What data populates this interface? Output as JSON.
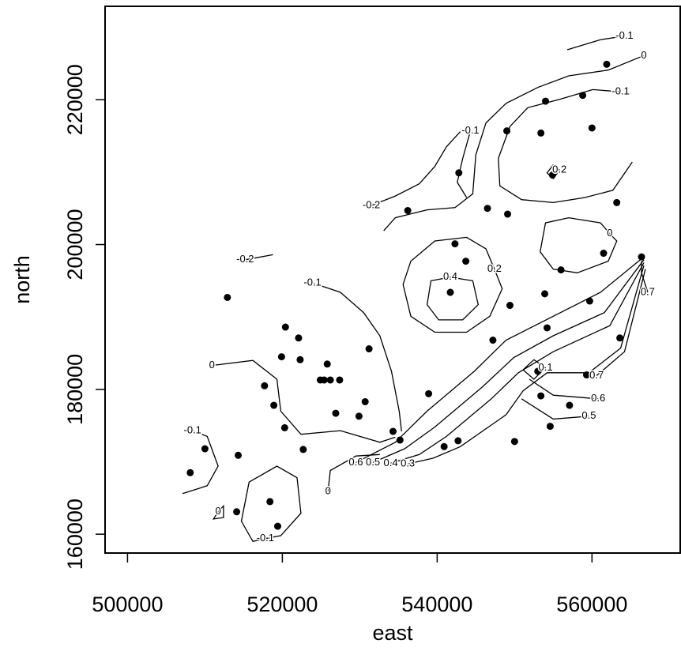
{
  "chart_data": {
    "type": "contour",
    "x_label": "east",
    "y_label": "north",
    "xlim": [
      497100,
      571500
    ],
    "ylim": [
      157400,
      232900
    ],
    "xticks": [
      500000,
      520000,
      540000,
      560000
    ],
    "yticks": [
      160000,
      180000,
      200000,
      220000
    ],
    "color": "#000000",
    "points": {
      "x": [
        561900,
        554000,
        558800,
        560000,
        549000,
        553400,
        542800,
        554900,
        546500,
        549100,
        536200,
        563200,
        542300,
        543700,
        561500,
        566400,
        541700,
        556000,
        553900,
        549400,
        559700,
        512900,
        520400,
        522100,
        519900,
        522300,
        525800,
        525400,
        524900,
        526200,
        527400,
        531200,
        547200,
        554200,
        563600,
        553000,
        559300,
        517700,
        518900,
        530700,
        526900,
        529900,
        538900,
        553400,
        557100,
        554600,
        520300,
        534300,
        522700,
        535200,
        540900,
        542700,
        550000,
        510000,
        514300,
        508100,
        518400,
        514100,
        519400
      ],
      "y": [
        224900,
        219800,
        220600,
        216100,
        215700,
        215400,
        209900,
        209600,
        205000,
        204200,
        204700,
        205800,
        200100,
        197700,
        198800,
        198300,
        193400,
        196500,
        193200,
        191600,
        192200,
        192700,
        188600,
        187100,
        184500,
        184100,
        183500,
        181300,
        181300,
        181300,
        181300,
        185600,
        186800,
        188500,
        187100,
        182500,
        182000,
        180500,
        177800,
        178300,
        176700,
        176300,
        179400,
        179100,
        177800,
        174900,
        174700,
        174200,
        171700,
        173000,
        172100,
        172900,
        172800,
        171800,
        170900,
        168500,
        164500,
        163100,
        161100
      ]
    },
    "contours": [
      {
        "level": -0.1,
        "x": [
          564200,
          561100,
          556800
        ],
        "y": [
          228800,
          228300,
          226900
        ]
      },
      {
        "level": 0,
        "x": [
          566700,
          562100,
          557000,
          553000,
          548900,
          546300,
          545000,
          544600,
          542300,
          538700,
          534600,
          533100
        ],
        "y": [
          226100,
          224100,
          223300,
          221700,
          219500,
          216800,
          212400,
          207000,
          205100,
          204800,
          203700,
          201900
        ]
      },
      {
        "level": -0.1,
        "x": [
          563700,
          560100,
          556000,
          551700,
          549400,
          547900,
          548100,
          550900,
          555000,
          559100,
          562700,
          565200
        ],
        "y": [
          221100,
          221400,
          220100,
          218900,
          216300,
          211900,
          208100,
          206200,
          205800,
          206500,
          207500,
          211400
        ]
      },
      {
        "level": -0.2,
        "x": [
          531500,
          534600,
          537700,
          539700,
          541200,
          543000
        ],
        "y": [
          205400,
          206700,
          208400,
          210800,
          213500,
          215600
        ]
      },
      {
        "level": -0.1,
        "x": [
          544300,
          543300,
          542600,
          543800
        ],
        "y": [
          215700,
          211900,
          208600,
          206500
        ]
      },
      {
        "level": 0,
        "x": [
          562300,
          561100,
          557000,
          554000,
          553300,
          555000,
          558100,
          562100,
          563200,
          562300
        ],
        "y": [
          201500,
          203000,
          203700,
          203000,
          199000,
          196600,
          196100,
          197700,
          200500,
          201500
        ]
      },
      {
        "level": 0.4,
        "x": [
          541700,
          544600,
          545300,
          543300,
          540200,
          538700,
          539200,
          541700
        ],
        "y": [
          195500,
          195000,
          191700,
          189600,
          189600,
          191700,
          195000,
          195500
        ]
      },
      {
        "level": 0.2,
        "x": [
          547400,
          548400,
          546800,
          543800,
          539700,
          536600,
          535600,
          536600,
          539700,
          543800,
          546300,
          547400
        ],
        "y": [
          196600,
          193900,
          190100,
          187900,
          187900,
          190100,
          194500,
          197700,
          200500,
          201000,
          199400,
          196600
        ]
      },
      {
        "level": -0.1,
        "x": [
          523900,
          527500,
          530500,
          532600,
          534100,
          535100,
          535400
        ],
        "y": [
          194700,
          193400,
          190600,
          187400,
          182500,
          177000,
          174200
        ]
      },
      {
        "level": 0,
        "x": [
          510900,
          516200,
          519300,
          519800,
          522400,
          527500,
          532600,
          534600
        ],
        "y": [
          183300,
          184000,
          181400,
          177000,
          173800,
          174300,
          172700,
          173400
        ]
      },
      {
        "level": -0.1,
        "x": [
          508400,
          510300,
          511700,
          510300,
          507100
        ],
        "y": [
          174300,
          173500,
          169400,
          166700,
          165600
        ]
      },
      {
        "level": -0.1,
        "x": [
          517800,
          519800,
          522400,
          521900,
          519300,
          515700,
          514700,
          516200,
          517800
        ],
        "y": [
          159400,
          159800,
          162900,
          167800,
          169400,
          167200,
          161800,
          159000,
          159400
        ]
      },
      {
        "level": 0,
        "x": [
          511700,
          512400,
          512400,
          511100,
          511700
        ],
        "y": [
          163100,
          163900,
          162300,
          162100,
          163100
        ]
      },
      {
        "level": 0,
        "x": [
          525900,
          526200,
          529500,
          532600
        ],
        "y": [
          165900,
          168800,
          170800,
          171000
        ]
      },
      {
        "level": -0.2,
        "x": [
          515200,
          518800
        ],
        "y": [
          197900,
          198600
        ]
      },
      {
        "level": 0.6,
        "x": [
          529500,
          534600,
          538700,
          544800,
          548900,
          555000,
          561100,
          566700
        ],
        "y": [
          169900,
          172700,
          177000,
          182500,
          186800,
          190100,
          193400,
          198300
        ]
      },
      {
        "level": 0.5,
        "x": [
          531700,
          535800,
          539700,
          545800,
          549900,
          555000,
          561600,
          566700
        ],
        "y": [
          169900,
          171800,
          174800,
          180300,
          184400,
          187400,
          190600,
          197900
        ]
      },
      {
        "level": 0.4,
        "x": [
          534000,
          537700,
          541200,
          547000,
          550500,
          555000,
          562300,
          566700
        ],
        "y": [
          169800,
          171000,
          173500,
          178700,
          182300,
          185200,
          188800,
          197500
        ]
      },
      {
        "level": 0.3,
        "x": [
          536200,
          539500,
          543000,
          548900,
          551100,
          554200,
          559600,
          563700,
          566700
        ],
        "y": [
          169700,
          170500,
          172100,
          176500,
          179800,
          182300,
          182300,
          185700,
          197100
        ]
      },
      {
        "level": 0.7,
        "x": [
          560600,
          564200,
          566900
        ],
        "y": [
          181900,
          185200,
          196600
        ]
      },
      {
        "level": 0.6,
        "x": [
          560800,
          555000,
          551900
        ],
        "y": [
          178700,
          179200,
          181400
        ]
      },
      {
        "level": 0.5,
        "x": [
          559600,
          555000,
          550900
        ],
        "y": [
          176300,
          175900,
          178700
        ]
      },
      {
        "level": 0.7,
        "x": [
          567200,
          566400,
          566400
        ],
        "y": [
          193400,
          196100,
          197700
        ]
      },
      {
        "level": 0.1,
        "x": [
          554000,
          552500,
          551100,
          552500,
          554000
        ],
        "y": [
          183000,
          184100,
          182700,
          181400,
          183000
        ]
      },
      {
        "level": 0.2,
        "x": [
          555800,
          555000,
          554200,
          555000,
          555800
        ],
        "y": [
          210300,
          211000,
          209900,
          209100,
          210300
        ]
      }
    ]
  }
}
